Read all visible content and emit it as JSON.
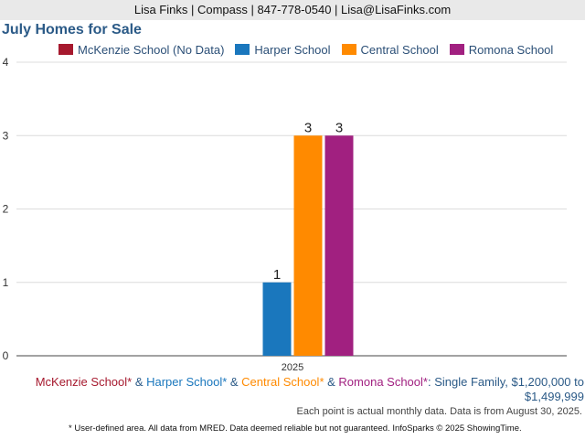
{
  "header": {
    "contact": "Lisa Finks | Compass | 847-778-0540 | Lisa@LisaFinks.com"
  },
  "chart_data": {
    "type": "bar",
    "title": "July Homes for Sale",
    "categories": [
      "2025"
    ],
    "series": [
      {
        "name": "McKenzie School (No Data)",
        "color": "#a6192e",
        "values": [
          null
        ]
      },
      {
        "name": "Harper School",
        "color": "#1a77bd",
        "values": [
          1
        ]
      },
      {
        "name": "Central School",
        "color": "#ff8a00",
        "values": [
          3
        ]
      },
      {
        "name": "Romona School",
        "color": "#a12080",
        "values": [
          3
        ]
      }
    ],
    "yticks": [
      0,
      1,
      2,
      3,
      4
    ],
    "ylim": [
      0,
      4
    ],
    "grid": true,
    "legend_position": "top"
  },
  "caption": {
    "mckenzie": "McKenzie School*",
    "amp1": " & ",
    "harper": "Harper School*",
    "amp2": " & ",
    "central": "Central School*",
    "amp3": " & ",
    "romona": "Romona School*",
    "rest": ": Single Family, $1,200,000 to",
    "rest2": "$1,499,999"
  },
  "note": "Each point is actual monthly data. Data is from August 30, 2025.",
  "footer": "* User-defined area. All data from MRED. Data deemed reliable but not guaranteed. InfoSparks © 2025 ShowingTime."
}
